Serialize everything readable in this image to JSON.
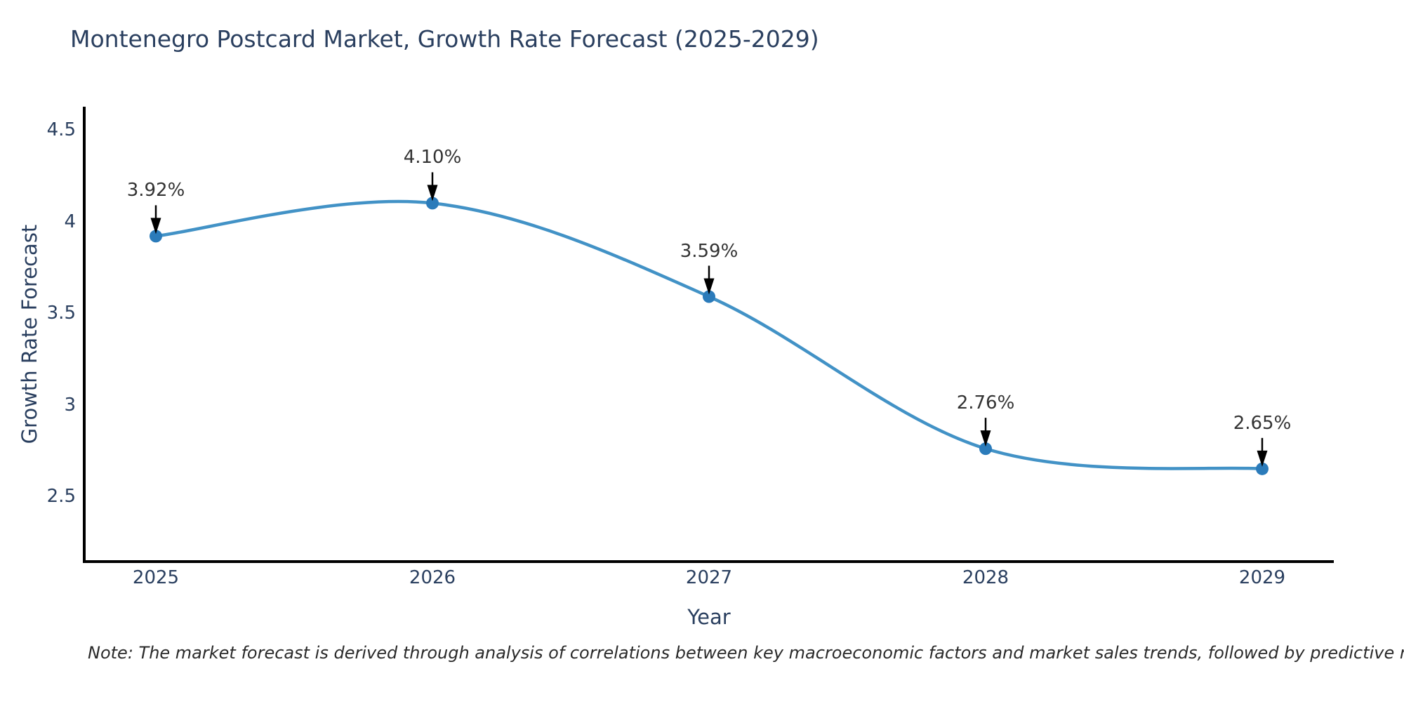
{
  "title": "Montenegro Postcard Market, Growth Rate Forecast (2025-2029)",
  "note": "Note: The market forecast is derived through analysis of correlations between key macroeconomic factors and market sales trends, followed by predictive modeling to project future sales",
  "chart_data": {
    "type": "line",
    "title": "Montenegro Postcard Market, Growth Rate Forecast (2025-2029)",
    "xlabel": "Year",
    "ylabel": "Growth Rate Forecast",
    "x": [
      2025,
      2026,
      2027,
      2028,
      2029
    ],
    "values": [
      3.92,
      4.1,
      3.59,
      2.76,
      2.65
    ],
    "point_labels": [
      "3.92%",
      "4.10%",
      "3.59%",
      "2.76%",
      "2.65%"
    ],
    "yticks": [
      2.5,
      3,
      3.5,
      4,
      4.5
    ],
    "ylim": [
      2.14,
      4.62
    ],
    "xlim": [
      2024.73,
      2029.26
    ],
    "line_shape": "spline",
    "grid": false,
    "legend": "none",
    "colors": {
      "line": "#4292c6",
      "marker": "#2b7bba",
      "axis": "#000000",
      "text": "#2a3f5f",
      "annotation": "#333333"
    }
  }
}
